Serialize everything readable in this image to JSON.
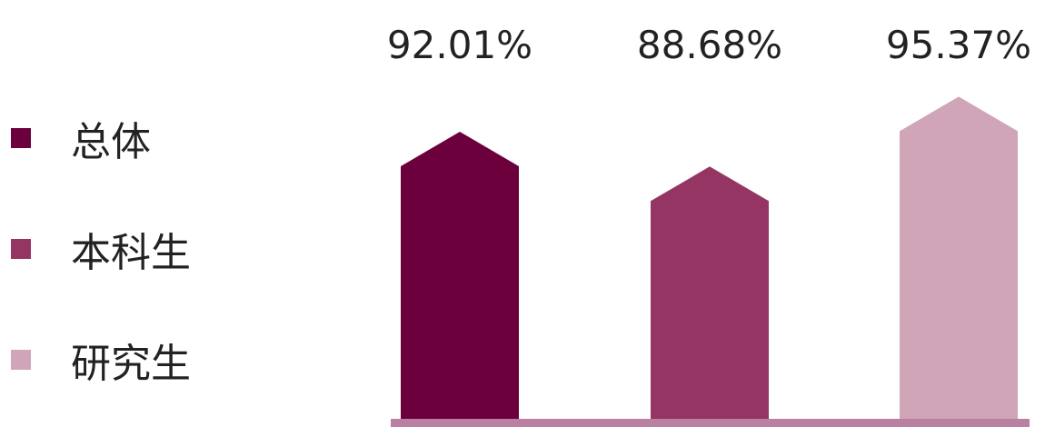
{
  "chart_data": {
    "type": "bar",
    "categories": [
      "总体",
      "本科生",
      "研究生"
    ],
    "values": [
      92.01,
      88.68,
      95.37
    ],
    "data_labels": [
      "92.01%",
      "88.68%",
      "95.37%"
    ],
    "legend_position": "left",
    "colors": [
      "#6c003d",
      "#953564",
      "#cfa5b7"
    ],
    "axis_color": "#b980a2",
    "label_color": "#222222"
  }
}
